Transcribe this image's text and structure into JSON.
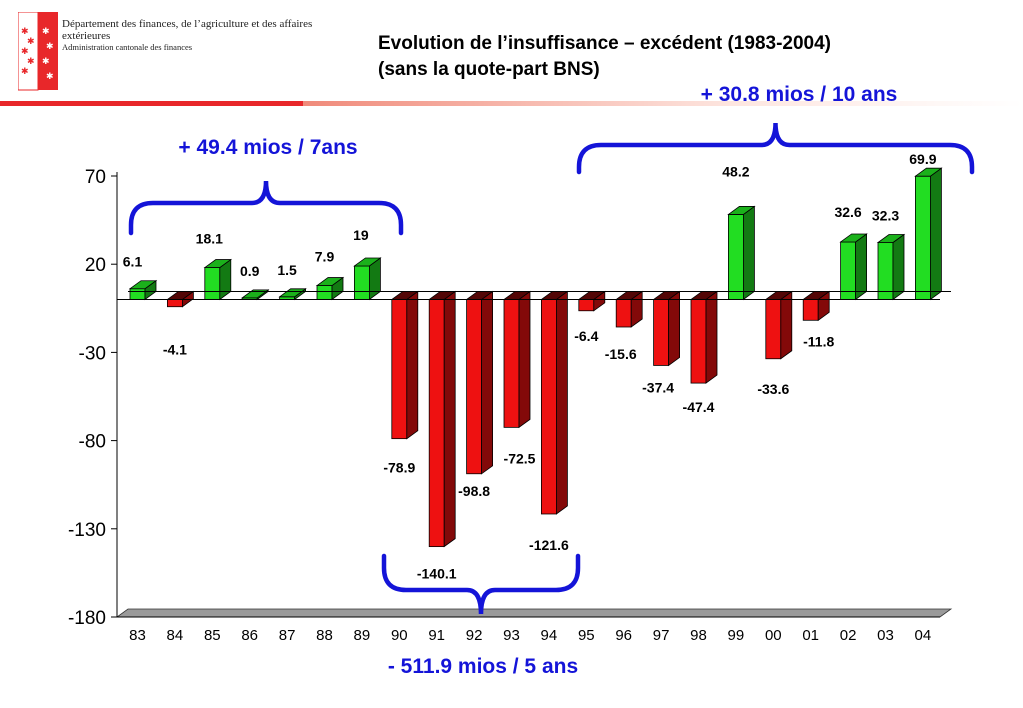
{
  "header": {
    "department": "Département des finances, de l’agriculture et des affaires extérieures",
    "administration": "Administration cantonale des finances"
  },
  "title_line1": "Evolution de l’insuffisance – excédent   (1983-2004)",
  "title_line2": "(sans la quote-part BNS)",
  "colors": {
    "positive": "#22dd22",
    "negative": "#ee1111",
    "annotation": "#1414d8",
    "brand_red": "#e8272a"
  },
  "chart_data": {
    "type": "bar",
    "categories": [
      "83",
      "84",
      "85",
      "86",
      "87",
      "88",
      "89",
      "90",
      "91",
      "92",
      "93",
      "94",
      "95",
      "96",
      "97",
      "98",
      "99",
      "00",
      "01",
      "02",
      "03",
      "04"
    ],
    "values": [
      6.1,
      -4.1,
      18.1,
      0.9,
      1.5,
      7.9,
      19,
      -78.9,
      -140.1,
      -98.8,
      -72.5,
      -121.6,
      -6.4,
      -15.6,
      -37.4,
      -47.4,
      48.2,
      -33.6,
      -11.8,
      32.6,
      32.3,
      69.9
    ],
    "value_labels": [
      "6.1",
      "-4.1",
      "18.1",
      "0.9",
      "1.5",
      "7.9",
      "19",
      "-78.9",
      "-140.1",
      "-98.8",
      "-72.5",
      "-121.6",
      "-6.4",
      "-15.6",
      "-37.4",
      "-47.4",
      "48.2",
      "-33.6",
      "-11.8",
      "32.6",
      "32.3",
      "69.9"
    ],
    "y_ticks": [
      70,
      20,
      -30,
      -80,
      -130,
      -180
    ],
    "ylim": [
      -180,
      70
    ],
    "grid": false,
    "annotations": [
      {
        "text": "+ 49.4 mios / 7ans",
        "from": "83",
        "to": "89",
        "position": "top"
      },
      {
        "text": "- 511.9 mios / 5 ans",
        "from": "90",
        "to": "94",
        "position": "bottom"
      },
      {
        "text": "+ 30.8 mios / 10 ans",
        "from": "95",
        "to": "04",
        "position": "top"
      }
    ]
  }
}
